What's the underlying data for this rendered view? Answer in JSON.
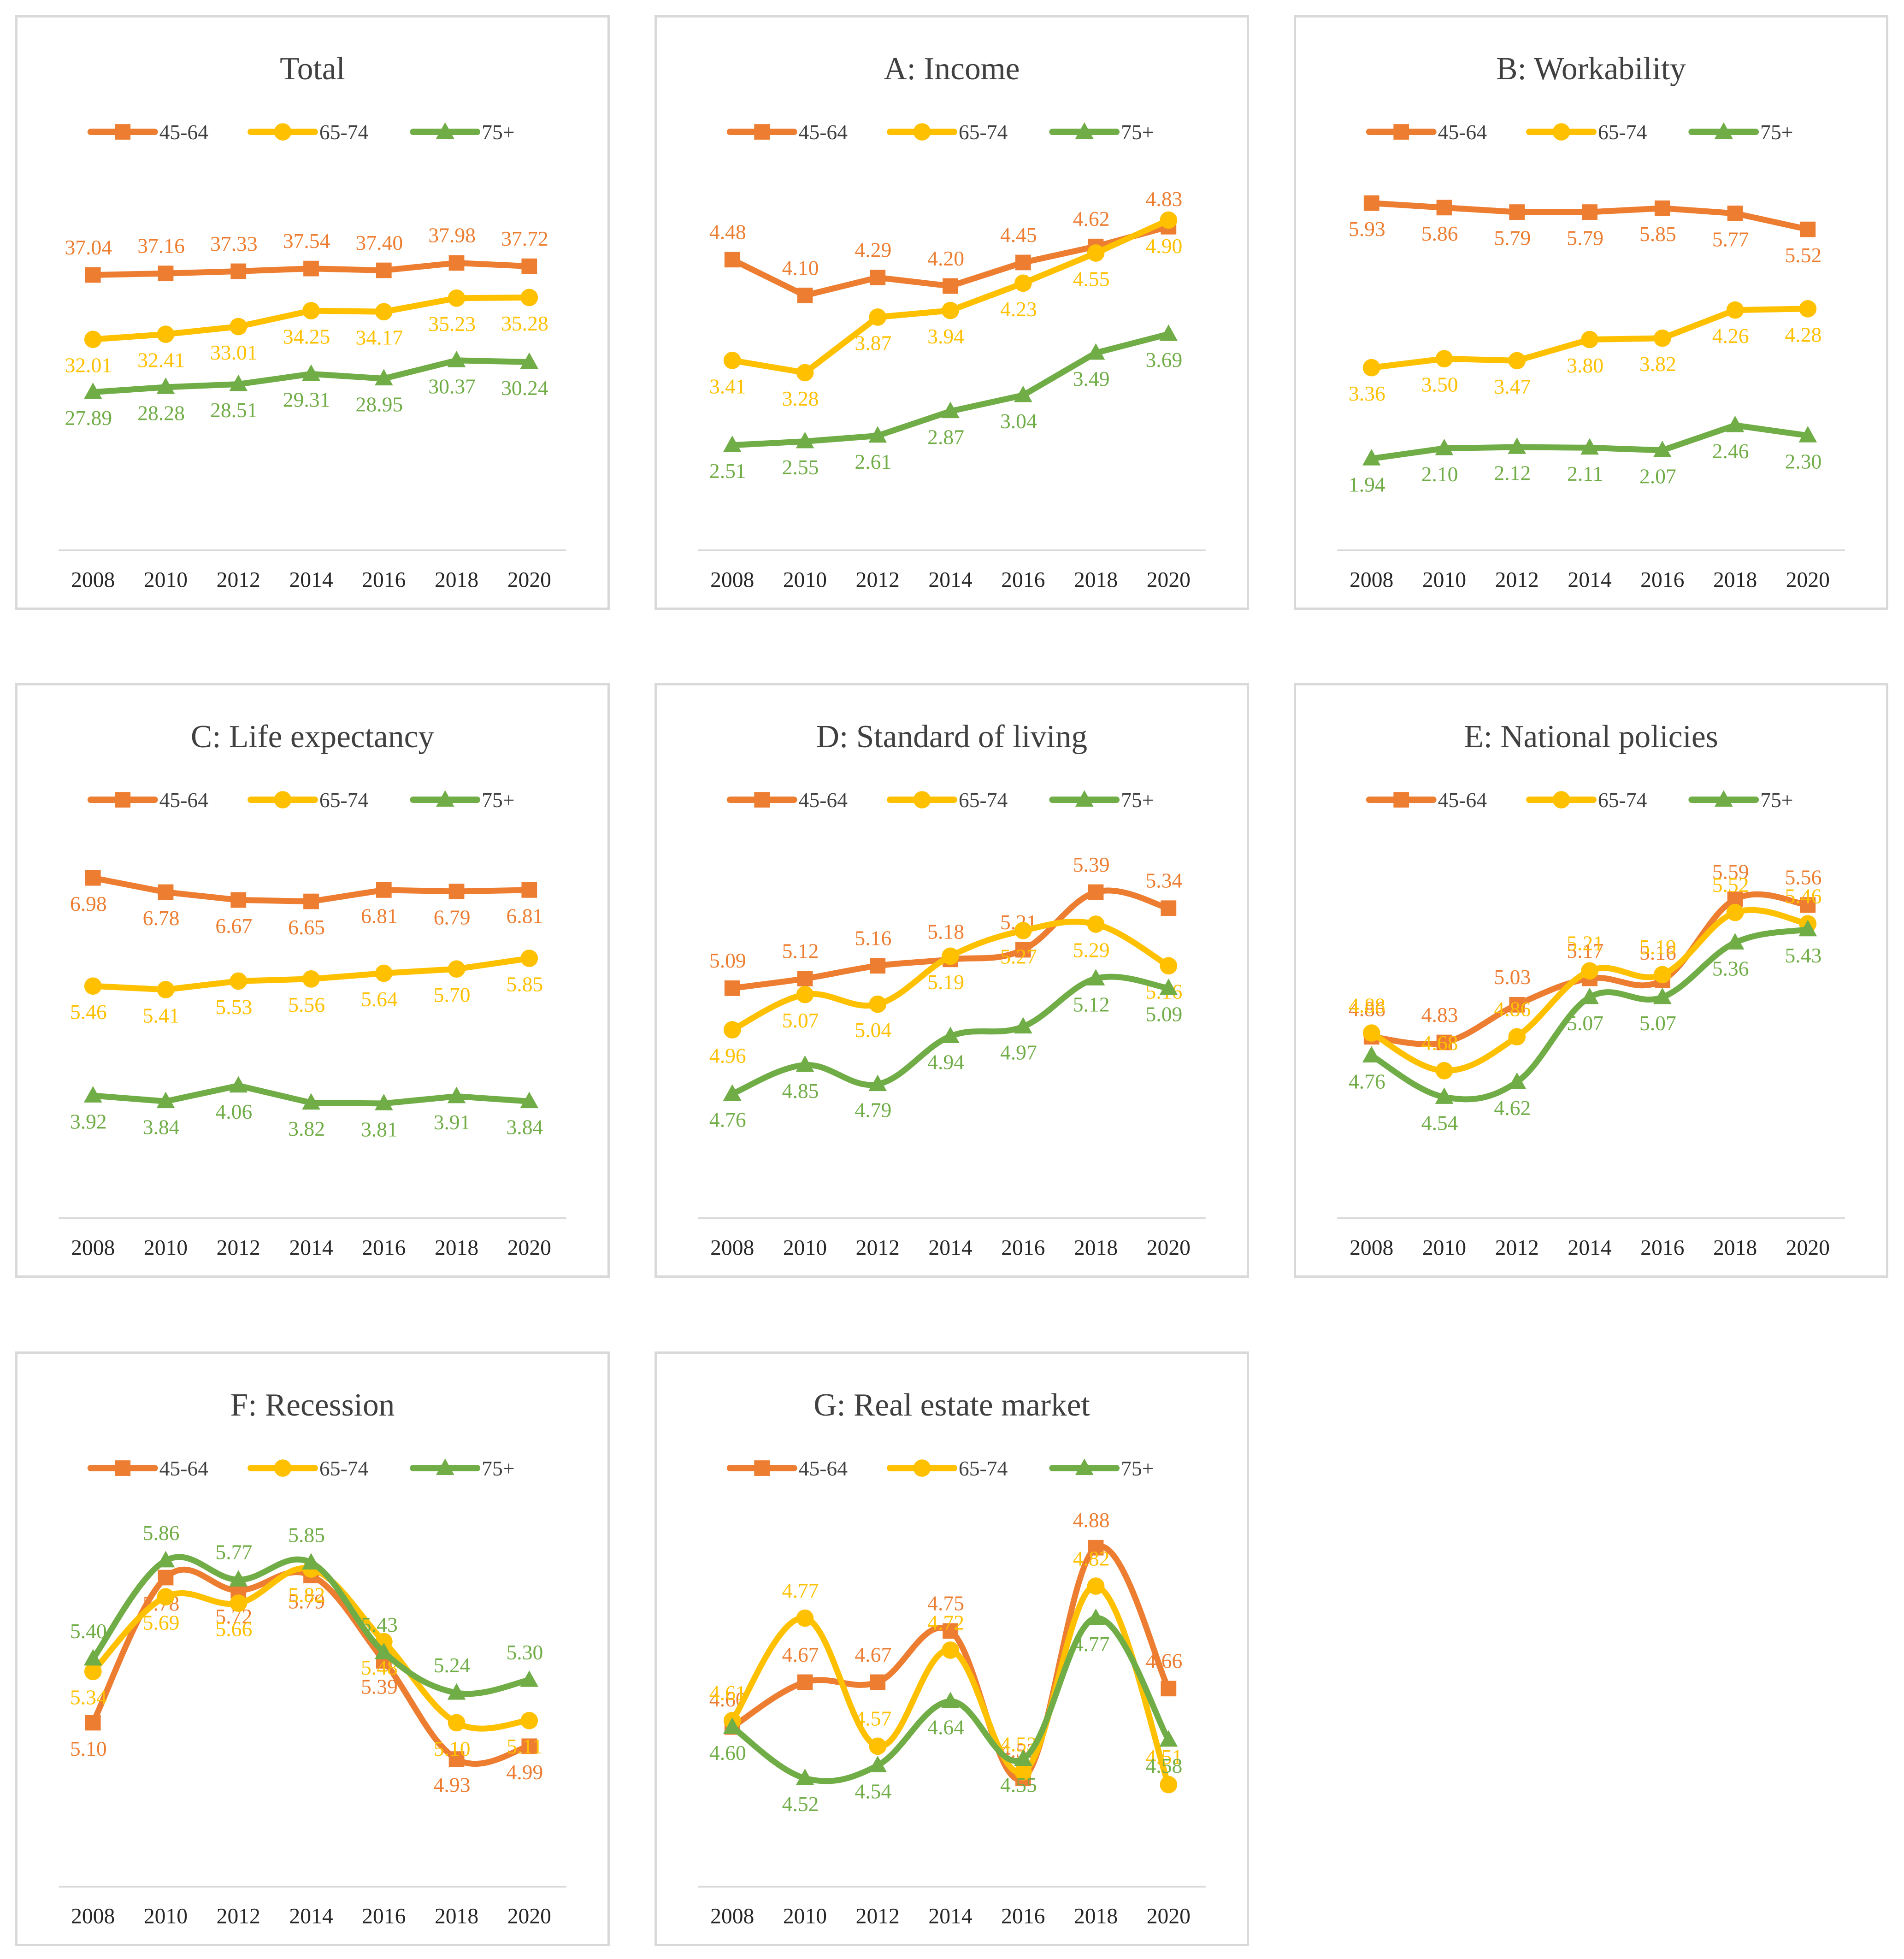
{
  "colors": {
    "45-64": "#ED7D31",
    "65-74": "#FFC000",
    "75+": "#70AD47"
  },
  "legend": [
    "45-64",
    "65-74",
    "75+"
  ],
  "chart_data": [
    {
      "type": "line",
      "title": "Total",
      "categories": [
        "2008",
        "2010",
        "2012",
        "2014",
        "2016",
        "2018",
        "2020"
      ],
      "ylim": [
        20,
        45
      ],
      "smooth": false,
      "series": [
        {
          "name": "45-64",
          "marker": "square",
          "values": [
            37.04,
            37.16,
            37.33,
            37.54,
            37.4,
            37.98,
            37.72
          ],
          "labels": [
            "37.04",
            "37.16",
            "37.33",
            "37.54",
            "37.40",
            "37.98",
            "37.72"
          ]
        },
        {
          "name": "65-74",
          "marker": "circle",
          "values": [
            32.01,
            32.41,
            33.01,
            34.25,
            34.17,
            35.23,
            35.28
          ],
          "labels": [
            "32.01",
            "32.41",
            "33.01",
            "34.25",
            "34.17",
            "35.23",
            "35.28"
          ]
        },
        {
          "name": "75+",
          "marker": "triangle",
          "values": [
            27.89,
            28.28,
            28.51,
            29.31,
            28.95,
            30.37,
            30.24
          ],
          "labels": [
            "27.89",
            "28.28",
            "28.51",
            "29.31",
            "28.95",
            "30.37",
            "30.24"
          ]
        }
      ]
    },
    {
      "type": "line",
      "title": "A: Income",
      "categories": [
        "2008",
        "2010",
        "2012",
        "2014",
        "2016",
        "2018",
        "2020"
      ],
      "ylim": [
        2.0,
        5.4
      ],
      "smooth": false,
      "series": [
        {
          "name": "45-64",
          "marker": "square",
          "values": [
            4.48,
            4.1,
            4.29,
            4.2,
            4.45,
            4.62,
            4.83
          ],
          "labels": [
            "4.48",
            "4.10",
            "4.29",
            "4.20",
            "4.45",
            "4.62",
            "4.83"
          ]
        },
        {
          "name": "65-74",
          "marker": "circle",
          "values": [
            3.41,
            3.28,
            3.87,
            3.94,
            4.23,
            4.55,
            4.9
          ],
          "labels": [
            "3.41",
            "3.28",
            "3.87",
            "3.94",
            "4.23",
            "4.55",
            "4.90"
          ]
        },
        {
          "name": "75+",
          "marker": "triangle",
          "values": [
            2.51,
            2.55,
            2.61,
            2.87,
            3.04,
            3.49,
            3.69
          ],
          "labels": [
            "2.51",
            "2.55",
            "2.61",
            "2.87",
            "3.04",
            "3.49",
            "3.69"
          ]
        }
      ]
    },
    {
      "type": "line",
      "title": "B: Workability",
      "categories": [
        "2008",
        "2010",
        "2012",
        "2014",
        "2016",
        "2018",
        "2020"
      ],
      "ylim": [
        1.4,
        6.4
      ],
      "smooth": false,
      "series": [
        {
          "name": "45-64",
          "marker": "square",
          "values": [
            5.93,
            5.86,
            5.79,
            5.79,
            5.85,
            5.77,
            5.52
          ],
          "labels": [
            "5.93",
            "5.86",
            "5.79",
            "5.79",
            "5.85",
            "5.77",
            "5.52"
          ]
        },
        {
          "name": "65-74",
          "marker": "circle",
          "values": [
            3.36,
            3.5,
            3.47,
            3.8,
            3.82,
            4.26,
            4.28
          ],
          "labels": [
            "3.36",
            "3.50",
            "3.47",
            "3.80",
            "3.82",
            "4.26",
            "4.28"
          ]
        },
        {
          "name": "75+",
          "marker": "triangle",
          "values": [
            1.94,
            2.1,
            2.12,
            2.11,
            2.07,
            2.46,
            2.3
          ],
          "labels": [
            "1.94",
            "2.10",
            "2.12",
            "2.11",
            "2.07",
            "2.46",
            "2.30"
          ]
        }
      ]
    },
    {
      "type": "line",
      "title": "C: Life expectancy",
      "categories": [
        "2008",
        "2010",
        "2012",
        "2014",
        "2016",
        "2018",
        "2020"
      ],
      "ylim": [
        3.0,
        7.5
      ],
      "smooth": false,
      "series": [
        {
          "name": "45-64",
          "marker": "square",
          "values": [
            6.98,
            6.78,
            6.67,
            6.65,
            6.81,
            6.79,
            6.81
          ],
          "labels": [
            "6.98",
            "6.78",
            "6.67",
            "6.65",
            "6.81",
            "6.79",
            "6.81"
          ]
        },
        {
          "name": "65-74",
          "marker": "circle",
          "values": [
            5.46,
            5.41,
            5.53,
            5.56,
            5.64,
            5.7,
            5.85
          ],
          "labels": [
            "5.46",
            "5.41",
            "5.53",
            "5.56",
            "5.64",
            "5.70",
            "5.85"
          ]
        },
        {
          "name": "75+",
          "marker": "triangle",
          "values": [
            3.92,
            3.84,
            4.06,
            3.82,
            3.81,
            3.91,
            3.84
          ],
          "labels": [
            "3.92",
            "3.84",
            "4.06",
            "3.82",
            "3.81",
            "3.91",
            "3.84"
          ]
        }
      ]
    },
    {
      "type": "line",
      "title": "D: Standard of living",
      "categories": [
        "2008",
        "2010",
        "2012",
        "2014",
        "2016",
        "2018",
        "2020"
      ],
      "ylim": [
        4.55,
        5.55
      ],
      "smooth": true,
      "series": [
        {
          "name": "45-64",
          "marker": "square",
          "values": [
            5.09,
            5.12,
            5.16,
            5.18,
            5.21,
            5.39,
            5.34
          ],
          "labels": [
            "5.09",
            "5.12",
            "5.16",
            "5.18",
            "5.21",
            "5.39",
            "5.34"
          ]
        },
        {
          "name": "65-74",
          "marker": "circle",
          "values": [
            4.96,
            5.07,
            5.04,
            5.19,
            5.27,
            5.29,
            5.16
          ],
          "labels": [
            "4.96",
            "5.07",
            "5.04",
            "5.19",
            "5.27",
            "5.29",
            "5.16"
          ]
        },
        {
          "name": "75+",
          "marker": "triangle",
          "values": [
            4.76,
            4.85,
            4.79,
            4.94,
            4.97,
            5.12,
            5.09
          ],
          "labels": [
            "4.76",
            "4.85",
            "4.79",
            "4.94",
            "4.97",
            "5.12",
            "5.09"
          ]
        }
      ]
    },
    {
      "type": "line",
      "title": "E: National policies",
      "categories": [
        "2008",
        "2010",
        "2012",
        "2014",
        "2016",
        "2018",
        "2020"
      ],
      "ylim": [
        4.2,
        5.9
      ],
      "smooth": true,
      "series": [
        {
          "name": "45-64",
          "marker": "square",
          "values": [
            4.86,
            4.83,
            5.03,
            5.17,
            5.16,
            5.59,
            5.56
          ],
          "labels": [
            "4.86",
            "4.83",
            "5.03",
            "5.17",
            "5.16",
            "5.59",
            "5.56"
          ]
        },
        {
          "name": "65-74",
          "marker": "circle",
          "values": [
            4.88,
            4.68,
            4.86,
            5.21,
            5.19,
            5.52,
            5.46
          ],
          "labels": [
            "4.88",
            "4.68",
            "4.86",
            "5.21",
            "5.19",
            "5.52",
            "5.46"
          ]
        },
        {
          "name": "75+",
          "marker": "triangle",
          "values": [
            4.76,
            4.54,
            4.62,
            5.07,
            5.07,
            5.36,
            5.43
          ],
          "labels": [
            "4.76",
            "4.54",
            "4.62",
            "5.07",
            "5.07",
            "5.36",
            "5.43"
          ]
        }
      ]
    },
    {
      "type": "line",
      "title": "F: Recession",
      "categories": [
        "2008",
        "2010",
        "2012",
        "2014",
        "2016",
        "2018",
        "2020"
      ],
      "ylim": [
        4.6,
        6.1
      ],
      "smooth": true,
      "series": [
        {
          "name": "45-64",
          "marker": "square",
          "values": [
            5.1,
            5.78,
            5.72,
            5.79,
            5.39,
            4.93,
            4.99
          ],
          "labels": [
            "5.10",
            "5.78",
            "5.72",
            "5.79",
            "5.39",
            "4.93",
            "4.99"
          ]
        },
        {
          "name": "65-74",
          "marker": "circle",
          "values": [
            5.34,
            5.69,
            5.66,
            5.82,
            5.48,
            5.1,
            5.11
          ],
          "labels": [
            "5.34",
            "5.69",
            "5.66",
            "5.82",
            "5.48",
            "5.10",
            "5.11"
          ]
        },
        {
          "name": "75+",
          "marker": "triangle",
          "values": [
            5.4,
            5.86,
            5.77,
            5.85,
            5.43,
            5.24,
            5.3
          ],
          "labels": [
            "5.40",
            "5.86",
            "5.77",
            "5.85",
            "5.43",
            "5.24",
            "5.30"
          ]
        }
      ]
    },
    {
      "type": "line",
      "title": "G: Real estate market",
      "categories": [
        "2008",
        "2010",
        "2012",
        "2014",
        "2016",
        "2018",
        "2020"
      ],
      "ylim": [
        4.44,
        4.94
      ],
      "smooth": true,
      "series": [
        {
          "name": "45-64",
          "marker": "square",
          "values": [
            4.6,
            4.67,
            4.67,
            4.75,
            4.52,
            4.88,
            4.66
          ],
          "labels": [
            "4.60",
            "4.67",
            "4.67",
            "4.75",
            "4.52",
            "4.88",
            "4.66"
          ]
        },
        {
          "name": "65-74",
          "marker": "circle",
          "values": [
            4.61,
            4.77,
            4.57,
            4.72,
            4.53,
            4.82,
            4.51
          ],
          "labels": [
            "4.61",
            "4.77",
            "4.57",
            "4.72",
            "4.53",
            "4.82",
            "4.51"
          ]
        },
        {
          "name": "75+",
          "marker": "triangle",
          "values": [
            4.6,
            4.52,
            4.54,
            4.64,
            4.55,
            4.77,
            4.58
          ],
          "labels": [
            "4.60",
            "4.52",
            "4.54",
            "4.64",
            "4.55",
            "4.77",
            "4.58"
          ]
        }
      ]
    }
  ]
}
